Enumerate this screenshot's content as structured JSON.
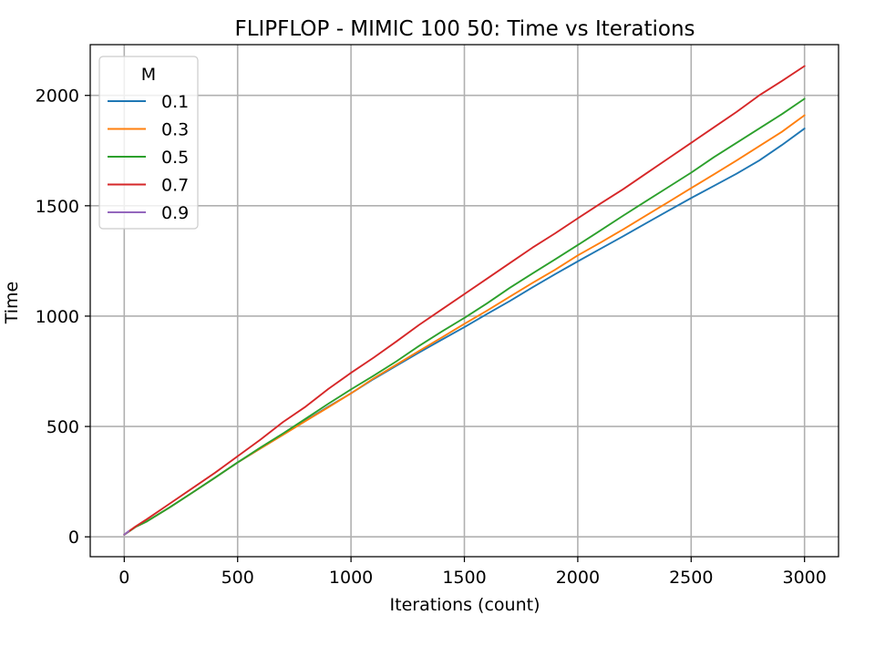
{
  "chart_data": {
    "type": "line",
    "title": "FLIPFLOP - MIMIC 100 50: Time vs Iterations",
    "xlabel": "Iterations (count)",
    "ylabel": "Time",
    "xlim": [
      -150,
      3150
    ],
    "ylim": [
      -90,
      2230
    ],
    "xticks": [
      0,
      500,
      1000,
      1500,
      2000,
      2500,
      3000
    ],
    "xtick_labels": [
      "0",
      "500",
      "1000",
      "1500",
      "2000",
      "2500",
      "3000"
    ],
    "yticks": [
      0,
      500,
      1000,
      1500,
      2000
    ],
    "ytick_labels": [
      "0",
      "500",
      "1000",
      "1500",
      "2000"
    ],
    "grid": true,
    "legend": {
      "title": "M",
      "placement": "top-left"
    },
    "series": [
      {
        "name": "0.1",
        "color": "#1f77b4",
        "x": [
          0,
          50,
          100,
          200,
          300,
          400,
          500,
          600,
          700,
          800,
          900,
          1000,
          1100,
          1200,
          1300,
          1400,
          1500,
          1600,
          1700,
          1800,
          1900,
          2000,
          2100,
          2200,
          2300,
          2400,
          2500,
          2600,
          2700,
          2800,
          2900,
          3000
        ],
        "y": [
          10,
          45,
          70,
          133,
          200,
          268,
          337,
          400,
          463,
          527,
          590,
          650,
          715,
          775,
          835,
          893,
          950,
          1010,
          1068,
          1130,
          1190,
          1248,
          1305,
          1362,
          1420,
          1478,
          1535,
          1590,
          1645,
          1705,
          1775,
          1850
        ]
      },
      {
        "name": "0.3",
        "color": "#ff7f0e",
        "x": [
          0,
          50,
          100,
          200,
          300,
          400,
          500,
          600,
          700,
          800,
          900,
          1000,
          1100,
          1200,
          1300,
          1400,
          1500,
          1600,
          1700,
          1800,
          1900,
          2000,
          2100,
          2200,
          2300,
          2400,
          2500,
          2600,
          2700,
          2800,
          2900,
          3000
        ],
        "y": [
          10,
          45,
          70,
          133,
          200,
          268,
          337,
          400,
          462,
          525,
          587,
          650,
          718,
          780,
          842,
          903,
          965,
          1025,
          1088,
          1150,
          1210,
          1275,
          1333,
          1393,
          1455,
          1517,
          1580,
          1642,
          1705,
          1770,
          1835,
          1910
        ]
      },
      {
        "name": "0.5",
        "color": "#2ca02c",
        "x": [
          0,
          50,
          100,
          200,
          300,
          400,
          500,
          600,
          700,
          800,
          900,
          1000,
          1100,
          1200,
          1300,
          1400,
          1500,
          1600,
          1700,
          1800,
          1900,
          2000,
          2100,
          2200,
          2300,
          2400,
          2500,
          2600,
          2700,
          2800,
          2900,
          3000
        ],
        "y": [
          10,
          45,
          70,
          133,
          200,
          268,
          337,
          404,
          468,
          535,
          603,
          668,
          730,
          795,
          865,
          930,
          992,
          1058,
          1128,
          1193,
          1257,
          1322,
          1388,
          1455,
          1520,
          1585,
          1650,
          1720,
          1785,
          1850,
          1915,
          1985
        ]
      },
      {
        "name": "0.7",
        "color": "#d62728",
        "x": [
          0,
          50,
          100,
          200,
          300,
          400,
          500,
          600,
          700,
          800,
          900,
          1000,
          1100,
          1200,
          1300,
          1400,
          1500,
          1600,
          1700,
          1800,
          1900,
          2000,
          2100,
          2200,
          2300,
          2400,
          2500,
          2600,
          2700,
          2800,
          2900,
          3000
        ],
        "y": [
          10,
          47,
          80,
          150,
          220,
          290,
          365,
          440,
          520,
          590,
          670,
          743,
          812,
          885,
          960,
          1030,
          1100,
          1170,
          1240,
          1310,
          1375,
          1443,
          1510,
          1575,
          1645,
          1715,
          1785,
          1855,
          1925,
          2000,
          2065,
          2133
        ]
      },
      {
        "name": "0.9",
        "color": "#9467bd",
        "x": [
          0,
          10,
          20
        ],
        "y": [
          10,
          18,
          26
        ]
      }
    ]
  }
}
